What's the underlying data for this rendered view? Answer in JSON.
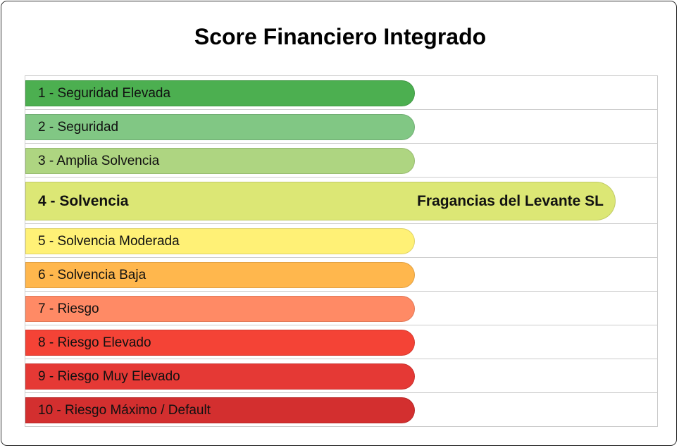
{
  "header": {
    "title": "Score Financiero Integrado"
  },
  "rows": [
    {
      "label": "1 - Seguridad Elevada",
      "color": "#4caf50"
    },
    {
      "label": "2 - Seguridad",
      "color": "#81c784"
    },
    {
      "label": "3 - Amplia Solvencia",
      "color": "#aed581"
    },
    {
      "label": "4 - Solvencia",
      "color": "#dce775",
      "company": "Fragancias del Levante SL"
    },
    {
      "label": "5 - Solvencia Moderada",
      "color": "#fff176"
    },
    {
      "label": "6 - Solvencia Baja",
      "color": "#ffb74d"
    },
    {
      "label": "7 - Riesgo",
      "color": "#ff8a65"
    },
    {
      "label": "8 - Riesgo Elevado",
      "color": "#f44336"
    },
    {
      "label": "9 - Riesgo Muy Elevado",
      "color": "#e53935"
    },
    {
      "label": "10 - Riesgo Máximo / Default",
      "color": "#d32f2f"
    }
  ]
}
